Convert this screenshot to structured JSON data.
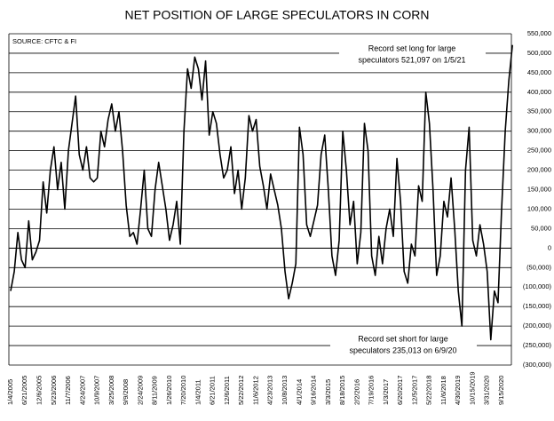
{
  "chart_data": {
    "type": "line",
    "title": "NET POSITION OF LARGE SPECULATORS IN CORN",
    "source": "SOURCE: CFTC & FI",
    "annotations": [
      [
        "Record set long for large",
        "speculators 521,097 on 1/5/21"
      ],
      [
        "Record set short for large",
        "speculators 235,013 on 6/9/20"
      ]
    ],
    "categories": [
      "1/4/2005",
      null,
      null,
      null,
      "6/21/2005",
      null,
      null,
      null,
      "12/6/2005",
      null,
      null,
      null,
      "5/23/2006",
      null,
      null,
      null,
      "11/7/2006",
      null,
      null,
      null,
      "4/24/2007",
      null,
      null,
      null,
      "10/9/2007",
      null,
      null,
      null,
      "3/25/2008",
      null,
      null,
      null,
      "9/9/2008",
      null,
      null,
      null,
      "2/24/2009",
      null,
      null,
      null,
      "8/11/2009",
      null,
      null,
      null,
      "1/26/2010",
      null,
      null,
      null,
      "7/20/2010",
      null,
      null,
      null,
      "1/4/2011",
      null,
      null,
      null,
      "6/21/2011",
      null,
      null,
      null,
      "12/6/2011",
      null,
      null,
      null,
      "5/22/2012",
      null,
      null,
      null,
      "11/6/2012",
      null,
      null,
      null,
      "4/23/2013",
      null,
      null,
      null,
      "10/8/2013",
      null,
      null,
      null,
      "4/1/2014",
      null,
      null,
      null,
      "9/16/2014",
      null,
      null,
      null,
      "3/3/2015",
      null,
      null,
      null,
      "8/18/2015",
      null,
      null,
      null,
      "2/2/2016",
      null,
      null,
      null,
      "7/19/2016",
      null,
      null,
      null,
      "1/3/2017",
      null,
      null,
      null,
      "6/20/2017",
      null,
      null,
      null,
      "12/5/2017",
      null,
      null,
      null,
      "5/22/2018",
      null,
      null,
      null,
      "11/6/2018",
      null,
      null,
      null,
      "4/30/2019",
      null,
      null,
      null,
      "10/15/2019",
      null,
      null,
      null,
      "3/31/2020",
      null,
      null,
      null,
      "9/15/2020",
      null,
      null,
      null
    ],
    "series": [
      {
        "color": "#000000",
        "values": [
          -110000,
          -60000,
          40000,
          -30000,
          -50000,
          70000,
          -30000,
          -10000,
          20000,
          170000,
          90000,
          200000,
          260000,
          150000,
          220000,
          100000,
          250000,
          320000,
          390000,
          240000,
          200000,
          260000,
          180000,
          170000,
          180000,
          300000,
          260000,
          330000,
          370000,
          300000,
          350000,
          250000,
          110000,
          30000,
          40000,
          10000,
          100000,
          200000,
          50000,
          30000,
          150000,
          220000,
          160000,
          100000,
          20000,
          60000,
          120000,
          10000,
          300000,
          460000,
          410000,
          490000,
          460000,
          380000,
          480000,
          290000,
          350000,
          320000,
          240000,
          180000,
          200000,
          260000,
          140000,
          200000,
          100000,
          180000,
          340000,
          300000,
          330000,
          210000,
          160000,
          100000,
          190000,
          150000,
          110000,
          50000,
          -60000,
          -130000,
          -90000,
          -40000,
          310000,
          240000,
          60000,
          30000,
          70000,
          110000,
          240000,
          290000,
          150000,
          -20000,
          -70000,
          20000,
          300000,
          200000,
          60000,
          120000,
          -40000,
          40000,
          320000,
          250000,
          -20000,
          -70000,
          30000,
          -40000,
          50000,
          100000,
          30000,
          230000,
          120000,
          -60000,
          -90000,
          10000,
          -20000,
          160000,
          120000,
          400000,
          320000,
          150000,
          -70000,
          -20000,
          120000,
          80000,
          180000,
          50000,
          -110000,
          -200000,
          200000,
          310000,
          20000,
          -20000,
          60000,
          10000,
          -60000,
          -235013,
          -110000,
          -140000,
          100000,
          300000,
          430000,
          521097
        ]
      }
    ],
    "ylim": [
      -300000,
      550000
    ],
    "yticks": [
      {
        "value": -300000,
        "label": "(300,000)"
      },
      {
        "value": -250000,
        "label": "(250,000)"
      },
      {
        "value": -200000,
        "label": "(200,000)"
      },
      {
        "value": -150000,
        "label": "(150,000)"
      },
      {
        "value": -100000,
        "label": "(100,000)"
      },
      {
        "value": -50000,
        "label": "(50,000)"
      },
      0,
      {
        "value": 50000,
        "label": "50,000"
      },
      {
        "value": 100000,
        "label": "100,000"
      },
      {
        "value": 150000,
        "label": "150,000"
      },
      {
        "value": 200000,
        "label": "200,000"
      },
      {
        "value": 250000,
        "label": "250,000"
      },
      {
        "value": 300000,
        "label": "300,000"
      },
      {
        "value": 350000,
        "label": "350,000"
      },
      {
        "value": 400000,
        "label": "400,000"
      },
      {
        "value": 450000,
        "label": "450,000"
      },
      {
        "value": 500000,
        "label": "500,000"
      },
      {
        "value": 550000,
        "label": "550,000"
      }
    ],
    "grid": true
  }
}
